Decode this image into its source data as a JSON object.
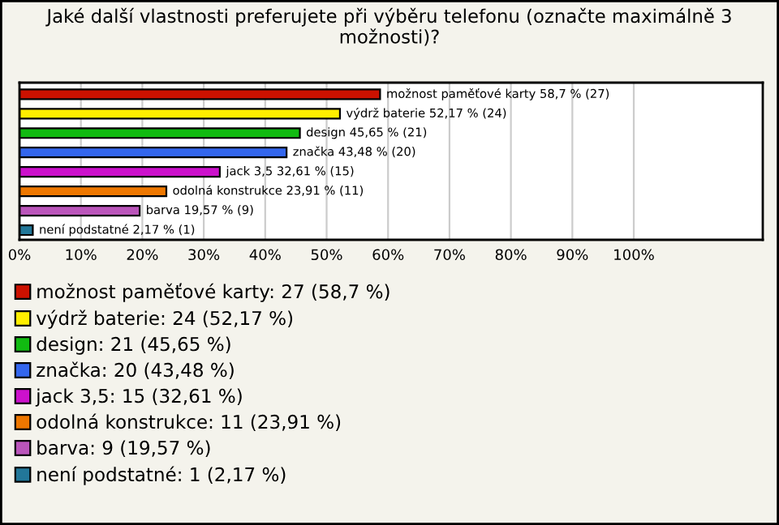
{
  "chart_data": {
    "type": "bar",
    "orientation": "horizontal",
    "title": "Jaké další vlastnosti preferujete při výběru telefonu (označte maximálně 3 možnosti)?",
    "categories": [
      null,
      null,
      null,
      null,
      null,
      null,
      null,
      null
    ],
    "series": [
      {
        "name": "možnost paměťové karty: 27 (58,7 %)",
        "color": "#cc1100",
        "values": [
          58.7,
          null,
          null,
          null,
          null,
          null,
          null,
          null
        ],
        "value_labels": [
          "možnost paměťové karty 58,7 % (27)",
          null,
          null,
          null,
          null,
          null,
          null,
          null
        ]
      },
      {
        "name": "výdrž baterie: 24 (52,17 %)",
        "color": "#ffee00",
        "values": [
          null,
          52.17,
          null,
          null,
          null,
          null,
          null,
          null
        ],
        "value_labels": [
          null,
          "výdrž baterie 52,17 % (24)",
          null,
          null,
          null,
          null,
          null,
          null
        ]
      },
      {
        "name": "design: 21 (45,65 %)",
        "color": "#11bb11",
        "values": [
          null,
          null,
          45.65,
          null,
          null,
          null,
          null,
          null
        ],
        "value_labels": [
          null,
          null,
          "design 45,65 % (21)",
          null,
          null,
          null,
          null,
          null
        ]
      },
      {
        "name": "značka: 20 (43,48 %)",
        "color": "#3366ee",
        "values": [
          null,
          null,
          null,
          43.48,
          null,
          null,
          null,
          null
        ],
        "value_labels": [
          null,
          null,
          null,
          "značka 43,48 % (20)",
          null,
          null,
          null,
          null
        ]
      },
      {
        "name": "jack 3,5: 15 (32,61 %)",
        "color": "#cc11cc",
        "values": [
          null,
          null,
          null,
          null,
          32.61,
          null,
          null,
          null
        ],
        "value_labels": [
          null,
          null,
          null,
          null,
          "jack 3,5 32,61 % (15)",
          null,
          null,
          null
        ]
      },
      {
        "name": "odolná konstrukce: 11 (23,91 %)",
        "color": "#ee7700",
        "values": [
          null,
          null,
          null,
          null,
          null,
          23.91,
          null,
          null
        ],
        "value_labels": [
          null,
          null,
          null,
          null,
          null,
          "odolná konstrukce 23,91 % (11)",
          null,
          null
        ]
      },
      {
        "name": "barva: 9 (19,57 %)",
        "color": "#bb55bb",
        "values": [
          null,
          null,
          null,
          null,
          null,
          null,
          19.57,
          null
        ],
        "value_labels": [
          null,
          null,
          null,
          null,
          null,
          null,
          "barva 19,57 % (9)",
          null
        ]
      },
      {
        "name": "není podstatné: 1 (2,17 %)",
        "color": "#227799",
        "values": [
          null,
          null,
          null,
          null,
          null,
          null,
          null,
          2.17
        ],
        "value_labels": [
          null,
          null,
          null,
          null,
          null,
          null,
          null,
          "není podstatné 2,17 % (1)"
        ]
      }
    ],
    "xlim": [
      0,
      121
    ],
    "xticks": [
      {
        "value": 0,
        "label": "0%"
      },
      {
        "value": 10,
        "label": "10%"
      },
      {
        "value": 20,
        "label": "20%"
      },
      {
        "value": 30,
        "label": "30%"
      },
      {
        "value": 40,
        "label": "40%"
      },
      {
        "value": 50,
        "label": "50%"
      },
      {
        "value": 60,
        "label": "60%"
      },
      {
        "value": 70,
        "label": "70%"
      },
      {
        "value": 80,
        "label": "80%"
      },
      {
        "value": 90,
        "label": "90%"
      },
      {
        "value": 100,
        "label": "100%"
      }
    ],
    "grid": "x",
    "legend": "bottom",
    "tick_labels": "x"
  }
}
